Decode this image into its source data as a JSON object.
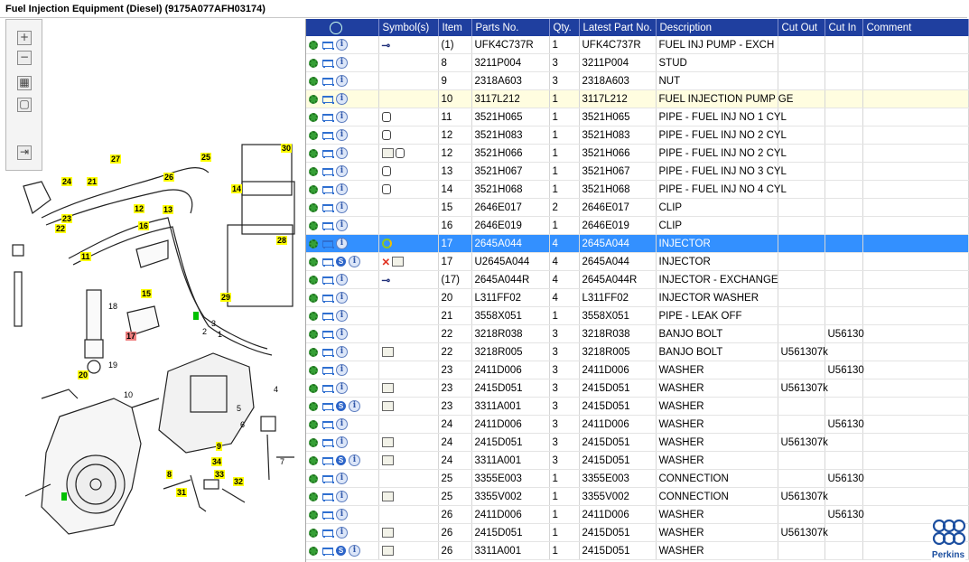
{
  "window": {
    "title": "Fuel Injection Equipment (Diesel) (9175A077AFH03174)"
  },
  "diagram": {
    "tags": [
      {
        "label": "30",
        "color": "yellow"
      },
      {
        "label": "27",
        "color": "yellow"
      },
      {
        "label": "25",
        "color": "yellow"
      },
      {
        "label": "24",
        "color": "yellow"
      },
      {
        "label": "21",
        "color": "yellow"
      },
      {
        "label": "26",
        "color": "yellow"
      },
      {
        "label": "14",
        "color": "yellow"
      },
      {
        "label": "13",
        "color": "yellow"
      },
      {
        "label": "12",
        "color": "yellow"
      },
      {
        "label": "23",
        "color": "yellow"
      },
      {
        "label": "22",
        "color": "yellow"
      },
      {
        "label": "16",
        "color": "yellow"
      },
      {
        "label": "28",
        "color": "yellow"
      },
      {
        "label": "11",
        "color": "yellow"
      },
      {
        "label": "15",
        "color": "yellow"
      },
      {
        "label": "29",
        "color": "yellow"
      },
      {
        "label": "17",
        "color": "red"
      },
      {
        "label": "20",
        "color": "yellow"
      },
      {
        "label": "9",
        "color": "yellow"
      },
      {
        "label": "34",
        "color": "yellow"
      },
      {
        "label": "33",
        "color": "yellow"
      },
      {
        "label": "32",
        "color": "yellow"
      },
      {
        "label": "31",
        "color": "yellow"
      },
      {
        "label": "8",
        "color": "yellow"
      },
      {
        "label": "18",
        "color": "plain"
      },
      {
        "label": "19",
        "color": "plain"
      },
      {
        "label": "3",
        "color": "plain"
      },
      {
        "label": "2",
        "color": "plain"
      },
      {
        "label": "1",
        "color": "plain"
      },
      {
        "label": "5",
        "color": "plain"
      },
      {
        "label": "6",
        "color": "plain"
      },
      {
        "label": "7",
        "color": "plain"
      },
      {
        "label": "10",
        "color": "plain"
      },
      {
        "label": "4",
        "color": "plain"
      }
    ]
  },
  "grid": {
    "columns": [
      "",
      "Symbol(s)",
      "Item",
      "Parts No.",
      "Qty.",
      "Latest Part No.",
      "Description",
      "Cut Out",
      "Cut In",
      "Comment"
    ],
    "rows": [
      {
        "s": false,
        "sym": "arrow",
        "item": "(1)",
        "part": "UFK4C737R",
        "qty": "1",
        "latest": "UFK4C737R",
        "desc": "FUEL INJ PUMP - EXCH",
        "out": "",
        "in": ""
      },
      {
        "s": false,
        "sym": "",
        "item": "8",
        "part": "3211P004",
        "qty": "3",
        "latest": "3211P004",
        "desc": "STUD",
        "out": "",
        "in": ""
      },
      {
        "s": false,
        "sym": "",
        "item": "9",
        "part": "2318A603",
        "qty": "3",
        "latest": "2318A603",
        "desc": "NUT",
        "out": "",
        "in": ""
      },
      {
        "s": false,
        "sym": "",
        "item": "10",
        "part": "3117L212",
        "qty": "1",
        "latest": "3117L212",
        "desc": "FUEL INJECTION PUMP GE",
        "out": "",
        "in": "",
        "hl": true
      },
      {
        "s": false,
        "sym": "pipe",
        "item": "11",
        "part": "3521H065",
        "qty": "1",
        "latest": "3521H065",
        "desc": "PIPE - FUEL INJ NO 1 CYL",
        "out": "",
        "in": ""
      },
      {
        "s": false,
        "sym": "pipe",
        "item": "12",
        "part": "3521H083",
        "qty": "1",
        "latest": "3521H083",
        "desc": "PIPE - FUEL INJ NO 2 CYL",
        "out": "",
        "in": ""
      },
      {
        "s": false,
        "sym": "book-pipe",
        "item": "12",
        "part": "3521H066",
        "qty": "1",
        "latest": "3521H066",
        "desc": "PIPE - FUEL INJ NO 2 CYL",
        "out": "",
        "in": ""
      },
      {
        "s": false,
        "sym": "pipe",
        "item": "13",
        "part": "3521H067",
        "qty": "1",
        "latest": "3521H067",
        "desc": "PIPE - FUEL INJ NO 3 CYL",
        "out": "",
        "in": ""
      },
      {
        "s": false,
        "sym": "pipe",
        "item": "14",
        "part": "3521H068",
        "qty": "1",
        "latest": "3521H068",
        "desc": "PIPE - FUEL INJ NO 4 CYL",
        "out": "",
        "in": ""
      },
      {
        "s": false,
        "sym": "",
        "item": "15",
        "part": "2646E017",
        "qty": "2",
        "latest": "2646E017",
        "desc": "CLIP",
        "out": "",
        "in": ""
      },
      {
        "s": false,
        "sym": "",
        "item": "16",
        "part": "2646E019",
        "qty": "1",
        "latest": "2646E019",
        "desc": "CLIP",
        "out": "",
        "in": ""
      },
      {
        "s": false,
        "sym": "swirl",
        "item": "17",
        "part": "2645A044",
        "qty": "4",
        "latest": "2645A044",
        "desc": "INJECTOR",
        "out": "",
        "in": "",
        "sel": true
      },
      {
        "s": true,
        "sym": "x-book",
        "item": "17",
        "part": "U2645A044",
        "qty": "4",
        "latest": "2645A044",
        "desc": "INJECTOR",
        "out": "",
        "in": ""
      },
      {
        "s": false,
        "sym": "arrow",
        "item": "(17)",
        "part": "2645A044R",
        "qty": "4",
        "latest": "2645A044R",
        "desc": "INJECTOR - EXCHANGE",
        "out": "",
        "in": ""
      },
      {
        "s": false,
        "sym": "",
        "item": "20",
        "part": "L311FF02",
        "qty": "4",
        "latest": "L311FF02",
        "desc": "INJECTOR WASHER",
        "out": "",
        "in": ""
      },
      {
        "s": false,
        "sym": "",
        "item": "21",
        "part": "3558X051",
        "qty": "1",
        "latest": "3558X051",
        "desc": "PIPE - LEAK OFF",
        "out": "",
        "in": ""
      },
      {
        "s": false,
        "sym": "",
        "item": "22",
        "part": "3218R038",
        "qty": "3",
        "latest": "3218R038",
        "desc": "BANJO BOLT",
        "out": "",
        "in": "U56130"
      },
      {
        "s": false,
        "sym": "book",
        "item": "22",
        "part": "3218R005",
        "qty": "3",
        "latest": "3218R005",
        "desc": "BANJO BOLT",
        "out": "U561307k",
        "in": ""
      },
      {
        "s": false,
        "sym": "",
        "item": "23",
        "part": "2411D006",
        "qty": "3",
        "latest": "2411D006",
        "desc": "WASHER",
        "out": "",
        "in": "U56130"
      },
      {
        "s": false,
        "sym": "book",
        "item": "23",
        "part": "2415D051",
        "qty": "3",
        "latest": "2415D051",
        "desc": "WASHER",
        "out": "U561307k",
        "in": ""
      },
      {
        "s": true,
        "sym": "book",
        "item": "23",
        "part": "3311A001",
        "qty": "3",
        "latest": "2415D051",
        "desc": "WASHER",
        "out": "",
        "in": ""
      },
      {
        "s": false,
        "sym": "",
        "item": "24",
        "part": "2411D006",
        "qty": "3",
        "latest": "2411D006",
        "desc": "WASHER",
        "out": "",
        "in": "U56130"
      },
      {
        "s": false,
        "sym": "book",
        "item": "24",
        "part": "2415D051",
        "qty": "3",
        "latest": "2415D051",
        "desc": "WASHER",
        "out": "U561307k",
        "in": ""
      },
      {
        "s": true,
        "sym": "book",
        "item": "24",
        "part": "3311A001",
        "qty": "3",
        "latest": "2415D051",
        "desc": "WASHER",
        "out": "",
        "in": ""
      },
      {
        "s": false,
        "sym": "",
        "item": "25",
        "part": "3355E003",
        "qty": "1",
        "latest": "3355E003",
        "desc": "CONNECTION",
        "out": "",
        "in": "U56130"
      },
      {
        "s": false,
        "sym": "book",
        "item": "25",
        "part": "3355V002",
        "qty": "1",
        "latest": "3355V002",
        "desc": "CONNECTION",
        "out": "U561307k",
        "in": ""
      },
      {
        "s": false,
        "sym": "",
        "item": "26",
        "part": "2411D006",
        "qty": "1",
        "latest": "2411D006",
        "desc": "WASHER",
        "out": "",
        "in": "U56130"
      },
      {
        "s": false,
        "sym": "book",
        "item": "26",
        "part": "2415D051",
        "qty": "1",
        "latest": "2415D051",
        "desc": "WASHER",
        "out": "U561307k",
        "in": ""
      },
      {
        "s": true,
        "sym": "book",
        "item": "26",
        "part": "3311A001",
        "qty": "1",
        "latest": "2415D051",
        "desc": "WASHER",
        "out": "",
        "in": ""
      }
    ]
  },
  "brand": {
    "name": "Perkins",
    "color": "#1c4fa0"
  },
  "colors": {
    "header": "#1f3f9f",
    "selected": "#3390ff",
    "highlight": "#fffde0",
    "tag": "#ffff00"
  }
}
